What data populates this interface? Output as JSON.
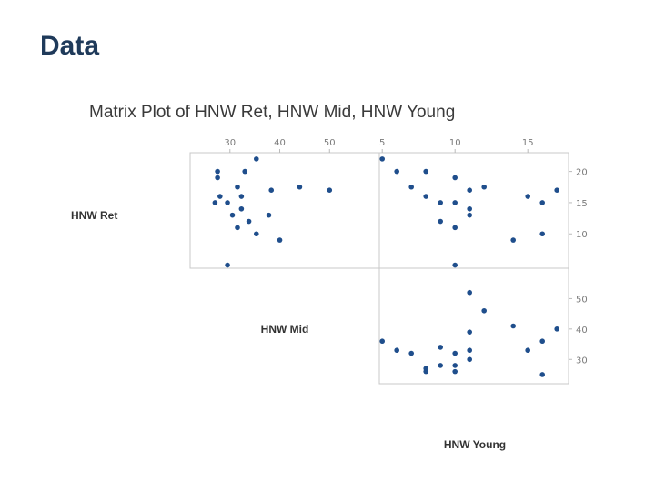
{
  "slide": {
    "title": "Data"
  },
  "chart_data": {
    "type": "scatter",
    "title": "Matrix Plot of HNW Ret, HNW Mid, HNW Young",
    "variables": [
      "HNW Ret",
      "HNW Mid",
      "HNW Young"
    ],
    "ranges": {
      "HNW Ret": [
        4.5,
        23
      ],
      "HNW Mid": [
        22,
        60
      ],
      "HNW Young": [
        4.8,
        17.8
      ]
    },
    "ticks": {
      "HNW Ret": [
        "10",
        "15",
        "20"
      ],
      "HNW Mid": [
        "30",
        "40",
        "50"
      ],
      "HNW Young": [
        "5",
        "10",
        "15"
      ]
    },
    "panels": [
      {
        "row": "HNW Ret",
        "col": "HNW Mid",
        "points": [
          [
            27.5,
            20
          ],
          [
            27.5,
            19
          ],
          [
            28,
            16
          ],
          [
            27,
            15
          ],
          [
            29.5,
            15
          ],
          [
            30.5,
            13
          ],
          [
            31.5,
            11
          ],
          [
            31.5,
            17.5
          ],
          [
            32.3,
            16
          ],
          [
            32.3,
            14
          ],
          [
            33,
            20
          ],
          [
            33.8,
            12
          ],
          [
            35.3,
            10
          ],
          [
            35.3,
            22
          ],
          [
            37.8,
            13
          ],
          [
            38.3,
            17
          ],
          [
            40,
            9
          ],
          [
            44,
            17.5
          ],
          [
            50,
            17
          ],
          [
            29.5,
            5
          ]
        ]
      },
      {
        "row": "HNW Ret",
        "col": "HNW Young",
        "points": [
          [
            5,
            22
          ],
          [
            6,
            20
          ],
          [
            7,
            17.5
          ],
          [
            8,
            20
          ],
          [
            8,
            16
          ],
          [
            9,
            15
          ],
          [
            9,
            12
          ],
          [
            10,
            19
          ],
          [
            10,
            15
          ],
          [
            10,
            11
          ],
          [
            11,
            17
          ],
          [
            11,
            14
          ],
          [
            11,
            13
          ],
          [
            12,
            17.5
          ],
          [
            14,
            9
          ],
          [
            15,
            16
          ],
          [
            16,
            15
          ],
          [
            16,
            10
          ],
          [
            17,
            17
          ],
          [
            10,
            5
          ]
        ]
      },
      {
        "row": "HNW Mid",
        "col": "HNW Young",
        "points": [
          [
            5,
            36
          ],
          [
            6,
            33
          ],
          [
            7,
            32
          ],
          [
            8,
            27
          ],
          [
            8,
            26
          ],
          [
            9,
            34
          ],
          [
            9,
            28
          ],
          [
            10,
            32
          ],
          [
            10,
            28
          ],
          [
            10,
            26
          ],
          [
            11,
            39
          ],
          [
            11,
            33
          ],
          [
            11,
            30
          ],
          [
            11,
            52
          ],
          [
            12,
            46
          ],
          [
            14,
            41
          ],
          [
            15,
            33
          ],
          [
            16,
            36
          ],
          [
            16,
            25
          ],
          [
            17,
            40
          ]
        ]
      }
    ],
    "point_color": "#1f4e8c",
    "grid": false
  }
}
